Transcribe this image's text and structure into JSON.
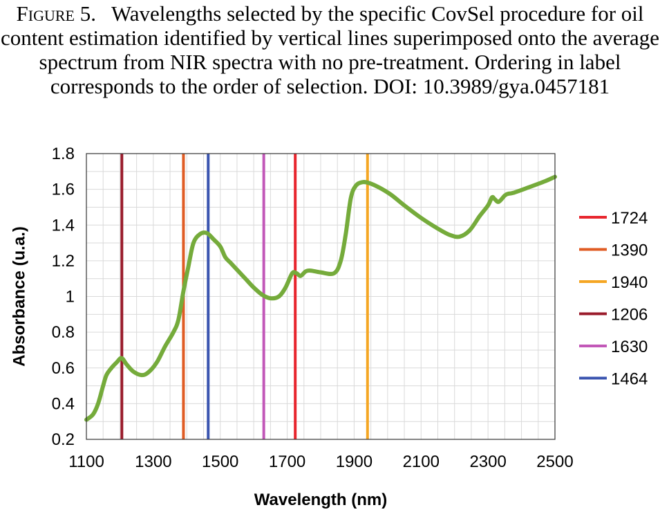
{
  "caption": {
    "label": "Figure 5.",
    "text": "Wavelengths selected by the specific CovSel procedure for oil content estimation identified by vertical lines superimposed onto the average spectrum from NIR spectra with no pre-treatment. Ordering in label corresponds to the order of selection. DOI: 10.3989/gya.0457181"
  },
  "chart_data": {
    "type": "line",
    "title": "",
    "xlabel": "Wavelength (nm)",
    "ylabel": "Absorbance (u.a.)",
    "xlim": [
      1100,
      2500
    ],
    "ylim": [
      0.2,
      1.8
    ],
    "x_ticks": [
      1100,
      1300,
      1500,
      1700,
      1900,
      2100,
      2300,
      2500
    ],
    "x_tick_labels": [
      "1100",
      "1300",
      "1500",
      "1700",
      "1900",
      "2100",
      "2300",
      "2500"
    ],
    "y_ticks": [
      0.2,
      0.4,
      0.6,
      0.8,
      1.0,
      1.2,
      1.4,
      1.6,
      1.8
    ],
    "y_tick_labels": [
      "0.2",
      "0.4",
      "0.6",
      "0.8",
      "1",
      "1.2",
      "1.4",
      "1.6",
      "1.8"
    ],
    "grid": true,
    "legend_position": "right",
    "spectrum": {
      "color": "#75ab3b",
      "points": [
        [
          1100,
          0.31
        ],
        [
          1120,
          0.34
        ],
        [
          1135,
          0.4
        ],
        [
          1150,
          0.5
        ],
        [
          1160,
          0.56
        ],
        [
          1175,
          0.6
        ],
        [
          1190,
          0.63
        ],
        [
          1205,
          0.655
        ],
        [
          1220,
          0.62
        ],
        [
          1240,
          0.58
        ],
        [
          1265,
          0.56
        ],
        [
          1285,
          0.575
        ],
        [
          1310,
          0.63
        ],
        [
          1335,
          0.72
        ],
        [
          1360,
          0.8
        ],
        [
          1375,
          0.87
        ],
        [
          1390,
          1.03
        ],
        [
          1405,
          1.17
        ],
        [
          1420,
          1.3
        ],
        [
          1440,
          1.35
        ],
        [
          1460,
          1.355
        ],
        [
          1480,
          1.32
        ],
        [
          1500,
          1.28
        ],
        [
          1515,
          1.22
        ],
        [
          1530,
          1.19
        ],
        [
          1550,
          1.15
        ],
        [
          1575,
          1.1
        ],
        [
          1600,
          1.05
        ],
        [
          1625,
          1.01
        ],
        [
          1650,
          0.99
        ],
        [
          1675,
          1.0
        ],
        [
          1695,
          1.05
        ],
        [
          1715,
          1.13
        ],
        [
          1728,
          1.13
        ],
        [
          1740,
          1.115
        ],
        [
          1755,
          1.14
        ],
        [
          1770,
          1.145
        ],
        [
          1800,
          1.135
        ],
        [
          1840,
          1.13
        ],
        [
          1860,
          1.2
        ],
        [
          1875,
          1.35
        ],
        [
          1890,
          1.55
        ],
        [
          1905,
          1.62
        ],
        [
          1925,
          1.64
        ],
        [
          1945,
          1.635
        ],
        [
          1975,
          1.61
        ],
        [
          2010,
          1.57
        ],
        [
          2050,
          1.51
        ],
        [
          2100,
          1.44
        ],
        [
          2150,
          1.38
        ],
        [
          2185,
          1.345
        ],
        [
          2215,
          1.335
        ],
        [
          2245,
          1.37
        ],
        [
          2275,
          1.45
        ],
        [
          2300,
          1.51
        ],
        [
          2312,
          1.555
        ],
        [
          2320,
          1.545
        ],
        [
          2332,
          1.53
        ],
        [
          2350,
          1.565
        ],
        [
          2360,
          1.575
        ],
        [
          2375,
          1.58
        ],
        [
          2420,
          1.61
        ],
        [
          2470,
          1.645
        ],
        [
          2500,
          1.67
        ]
      ]
    },
    "selected_wavelengths": [
      {
        "name": "1724",
        "x": 1724,
        "color": "#e8262e"
      },
      {
        "name": "1390",
        "x": 1390,
        "color": "#e05c24"
      },
      {
        "name": "1940",
        "x": 1940,
        "color": "#f5a623"
      },
      {
        "name": "1206",
        "x": 1206,
        "color": "#9a1b2b"
      },
      {
        "name": "1630",
        "x": 1630,
        "color": "#c258b8"
      },
      {
        "name": "1464",
        "x": 1464,
        "color": "#3b55b0"
      }
    ]
  }
}
